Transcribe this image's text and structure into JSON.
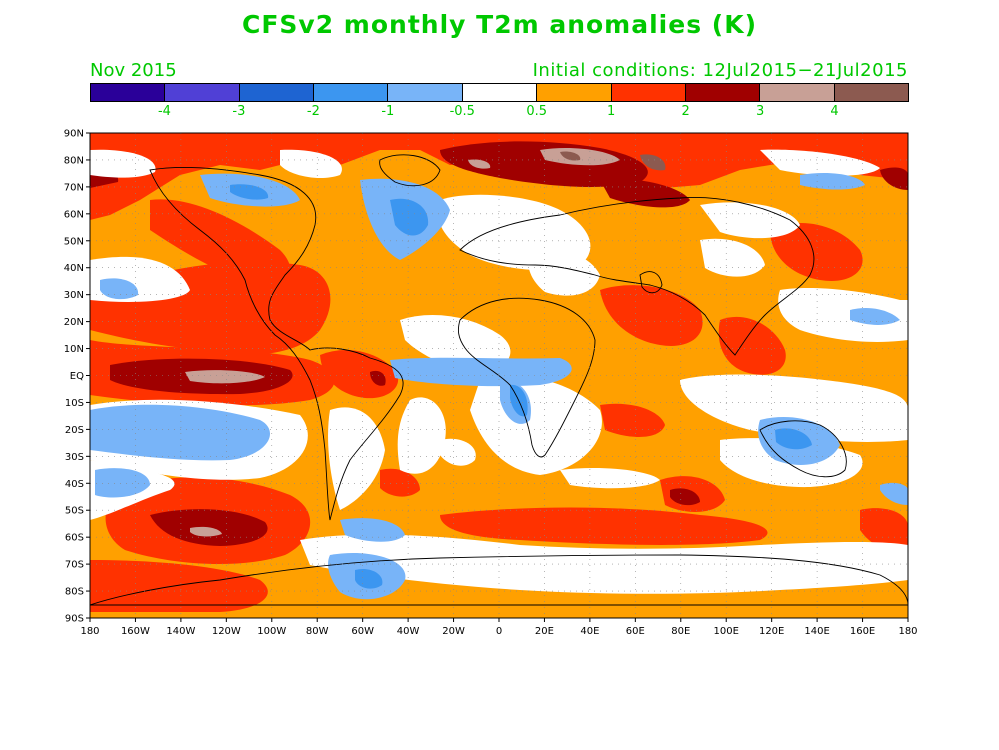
{
  "title": "CFSv2 monthly T2m anomalies (K)",
  "month": "Nov 2015",
  "initial_conditions": "Initial conditions: 12Jul2015−21Jul2015",
  "legend": {
    "colors": [
      "#2a0099",
      "#5040d6",
      "#1e64d2",
      "#3c96f0",
      "#78b4f8",
      "#ffffff",
      "#ffa000",
      "#ff3200",
      "#a00000",
      "#c8a096",
      "#8c5a50"
    ],
    "ticks": [
      "-4",
      "-3",
      "-2",
      "-1",
      "-0.5",
      "0.5",
      "1",
      "2",
      "3",
      "4"
    ]
  },
  "map": {
    "lat_labels": [
      "90N",
      "80N",
      "70N",
      "60N",
      "50N",
      "40N",
      "30N",
      "20N",
      "10N",
      "EQ",
      "10S",
      "20S",
      "30S",
      "40S",
      "50S",
      "60S",
      "70S",
      "80S",
      "90S"
    ],
    "lon_labels": [
      "180",
      "160W",
      "140W",
      "120W",
      "100W",
      "80W",
      "60W",
      "40W",
      "20W",
      "0",
      "20E",
      "40E",
      "60E",
      "80E",
      "100E",
      "120E",
      "140E",
      "160E",
      "180"
    ]
  }
}
